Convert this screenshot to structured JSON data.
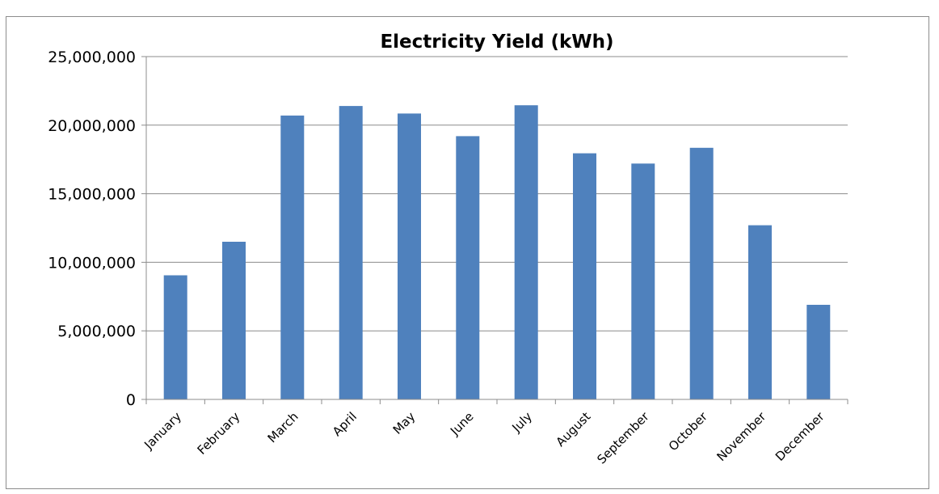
{
  "chart_data": {
    "type": "bar",
    "title": "Electricity Yield (kWh)",
    "xlabel": "",
    "ylabel": "",
    "categories": [
      "January",
      "February",
      "March",
      "April",
      "May",
      "June",
      "July",
      "August",
      "September",
      "October",
      "November",
      "December"
    ],
    "values": [
      9050000,
      11500000,
      20700000,
      21400000,
      20850000,
      19200000,
      21450000,
      17950000,
      17200000,
      18350000,
      12700000,
      6900000
    ],
    "ylim": [
      0,
      25000000
    ],
    "yticks": [
      0,
      5000000,
      10000000,
      15000000,
      20000000,
      25000000
    ],
    "ytick_labels": [
      "0",
      "5,000,000",
      "10,000,000",
      "15,000,000",
      "20,000,000",
      "25,000,000"
    ],
    "grid": true,
    "legend": "none",
    "colors": {
      "bar": "#4f81bd",
      "grid": "#8c8c8c"
    }
  }
}
